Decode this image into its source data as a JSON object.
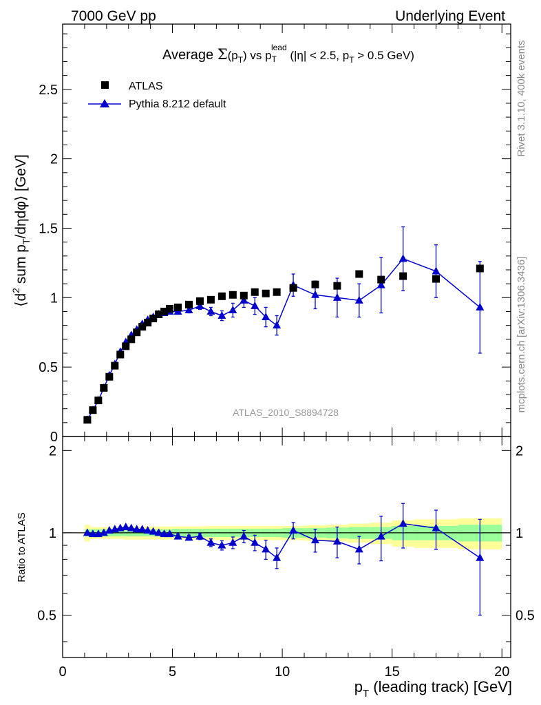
{
  "header": {
    "left": "7000 GeV pp",
    "right": "Underlying Event"
  },
  "side_labels": {
    "rivet": "Rivet 3.1.10,  400k events",
    "mcplots": "mcplots.cern.ch [arXiv:1306.3436]"
  },
  "colors": {
    "data": "#000000",
    "mc": "#0000cc",
    "band_inner": "#99ff99",
    "band_outer": "#ffff99",
    "watermark": "#999999"
  },
  "chart_data": [
    {
      "type": "scatter",
      "title": "Average Σ(p_T) vs p_T^lead (|η| < 2.5, p_T > 0.5 GeV)",
      "title_parts": {
        "a": "Average ",
        "sigma": "Σ",
        "b": "(p",
        "b_sub": "T",
        "c": ") vs p",
        "c_sub": "T",
        "c_sup": "lead",
        "d": " (|η| < 2.5, p",
        "d_sub": "T",
        "e": " > 0.5 GeV)"
      },
      "ylabel": "⟨d² sum p_T/dηdφ⟩ [GeV]",
      "ylabel_parts": {
        "a": "⟨d",
        "a_sup": "2",
        "b": " sum p",
        "b_sub": "T",
        "c": "/dηdφ⟩ [GeV]"
      },
      "watermark": "ATLAS_2010_S8894728",
      "xlim": [
        0,
        20.4
      ],
      "ylim": [
        0,
        2.97
      ],
      "yticks": [
        0.5,
        1,
        1.5,
        2,
        2.5
      ],
      "ytick_labels": [
        "0.5",
        "1",
        "1.5",
        "2",
        "2.5"
      ],
      "bottom_partial_label": "0",
      "legend_position": "top-left",
      "series": [
        {
          "name": "ATLAS",
          "marker": "square",
          "x": [
            1.125,
            1.375,
            1.625,
            1.875,
            2.125,
            2.375,
            2.625,
            2.875,
            3.125,
            3.375,
            3.625,
            3.875,
            4.125,
            4.375,
            4.625,
            4.875,
            5.25,
            5.75,
            6.25,
            6.75,
            7.25,
            7.75,
            8.25,
            8.75,
            9.25,
            9.75,
            10.5,
            11.5,
            12.5,
            13.5,
            14.5,
            15.5,
            17.0,
            19.0
          ],
          "y": [
            0.12,
            0.19,
            0.26,
            0.35,
            0.43,
            0.51,
            0.59,
            0.65,
            0.7,
            0.75,
            0.79,
            0.82,
            0.85,
            0.88,
            0.9,
            0.92,
            0.93,
            0.95,
            0.975,
            0.985,
            1.01,
            1.02,
            1.015,
            1.04,
            1.03,
            1.04,
            1.07,
            1.095,
            1.085,
            1.17,
            1.13,
            1.155,
            1.135,
            1.21
          ]
        },
        {
          "name": "Pythia 8.212 default",
          "marker": "triangle",
          "x": [
            1.125,
            1.375,
            1.625,
            1.875,
            2.125,
            2.375,
            2.625,
            2.875,
            3.125,
            3.375,
            3.625,
            3.875,
            4.125,
            4.375,
            4.625,
            4.875,
            5.25,
            5.75,
            6.25,
            6.75,
            7.25,
            7.75,
            8.25,
            8.75,
            9.25,
            9.75,
            10.5,
            11.5,
            12.5,
            13.5,
            14.5,
            15.5,
            17.0,
            19.0
          ],
          "y": [
            0.12,
            0.19,
            0.26,
            0.35,
            0.44,
            0.52,
            0.61,
            0.68,
            0.73,
            0.77,
            0.81,
            0.84,
            0.86,
            0.88,
            0.89,
            0.9,
            0.9,
            0.91,
            0.94,
            0.9,
            0.87,
            0.91,
            0.98,
            0.94,
            0.86,
            0.8,
            1.09,
            1.02,
            1.0,
            0.98,
            1.09,
            1.28,
            1.19,
            0.93
          ],
          "yerr": [
            0.005,
            0.005,
            0.005,
            0.005,
            0.005,
            0.005,
            0.005,
            0.008,
            0.008,
            0.008,
            0.01,
            0.01,
            0.01,
            0.012,
            0.012,
            0.015,
            0.02,
            0.02,
            0.025,
            0.03,
            0.035,
            0.05,
            0.05,
            0.06,
            0.07,
            0.07,
            0.08,
            0.1,
            0.14,
            0.12,
            0.2,
            0.23,
            0.19,
            0.33
          ]
        }
      ]
    },
    {
      "type": "line",
      "ylabel": "Ratio to ATLAS",
      "xlabel": "p_T (leading track) [GeV]",
      "xlabel_parts": {
        "a": "p",
        "a_sub": "T",
        "b": " (leading track) [GeV]"
      },
      "xlim": [
        0,
        20.4
      ],
      "ylim": [
        0.35,
        2.25
      ],
      "xticks": [
        0,
        5,
        10,
        15,
        20
      ],
      "xtick_labels": [
        "0",
        "5",
        "10",
        "15",
        "20"
      ],
      "yticks": [
        0.5,
        1,
        2
      ],
      "ytick_labels": [
        "0.5",
        "1",
        "2"
      ],
      "band_edges": [
        1.0,
        1.25,
        1.5,
        1.75,
        2.0,
        2.25,
        2.5,
        2.75,
        3.0,
        3.25,
        3.5,
        3.75,
        4.0,
        4.25,
        4.5,
        4.75,
        5.0,
        5.5,
        6.0,
        6.5,
        7.0,
        7.5,
        8.0,
        8.5,
        9.0,
        9.5,
        10.0,
        11.0,
        12.0,
        13.0,
        14.0,
        15.0,
        16.0,
        18.0,
        20.0
      ],
      "band_inner": [
        0.03,
        0.03,
        0.03,
        0.03,
        0.03,
        0.03,
        0.03,
        0.03,
        0.03,
        0.03,
        0.03,
        0.03,
        0.03,
        0.03,
        0.03,
        0.03,
        0.035,
        0.035,
        0.035,
        0.035,
        0.035,
        0.035,
        0.035,
        0.035,
        0.035,
        0.035,
        0.04,
        0.04,
        0.045,
        0.05,
        0.05,
        0.06,
        0.06,
        0.07
      ],
      "band_outer": [
        0.07,
        0.05,
        0.05,
        0.05,
        0.05,
        0.05,
        0.05,
        0.055,
        0.055,
        0.055,
        0.055,
        0.055,
        0.055,
        0.055,
        0.055,
        0.055,
        0.055,
        0.055,
        0.055,
        0.06,
        0.06,
        0.06,
        0.06,
        0.06,
        0.06,
        0.06,
        0.06,
        0.065,
        0.07,
        0.08,
        0.09,
        0.11,
        0.12,
        0.13
      ],
      "series": [
        {
          "name": "Pythia 8.212 default",
          "x": [
            1.125,
            1.375,
            1.625,
            1.875,
            2.125,
            2.375,
            2.625,
            2.875,
            3.125,
            3.375,
            3.625,
            3.875,
            4.125,
            4.375,
            4.625,
            4.875,
            5.25,
            5.75,
            6.25,
            6.75,
            7.25,
            7.75,
            8.25,
            8.75,
            9.25,
            9.75,
            10.5,
            11.5,
            12.5,
            13.5,
            14.5,
            15.5,
            17.0,
            19.0
          ],
          "y": [
            1.0,
            0.99,
            0.99,
            1.0,
            1.02,
            1.03,
            1.04,
            1.05,
            1.04,
            1.03,
            1.03,
            1.02,
            1.01,
            1.0,
            0.99,
            0.99,
            0.97,
            0.96,
            0.97,
            0.92,
            0.9,
            0.92,
            0.97,
            0.92,
            0.87,
            0.81,
            1.02,
            0.94,
            0.93,
            0.87,
            0.97,
            1.08,
            1.04,
            0.81
          ],
          "yerr": [
            0.01,
            0.01,
            0.01,
            0.01,
            0.01,
            0.01,
            0.01,
            0.01,
            0.01,
            0.01,
            0.01,
            0.01,
            0.015,
            0.015,
            0.015,
            0.015,
            0.02,
            0.02,
            0.025,
            0.03,
            0.035,
            0.045,
            0.05,
            0.06,
            0.07,
            0.07,
            0.07,
            0.09,
            0.12,
            0.1,
            0.18,
            0.2,
            0.17,
            0.31
          ]
        }
      ]
    }
  ]
}
